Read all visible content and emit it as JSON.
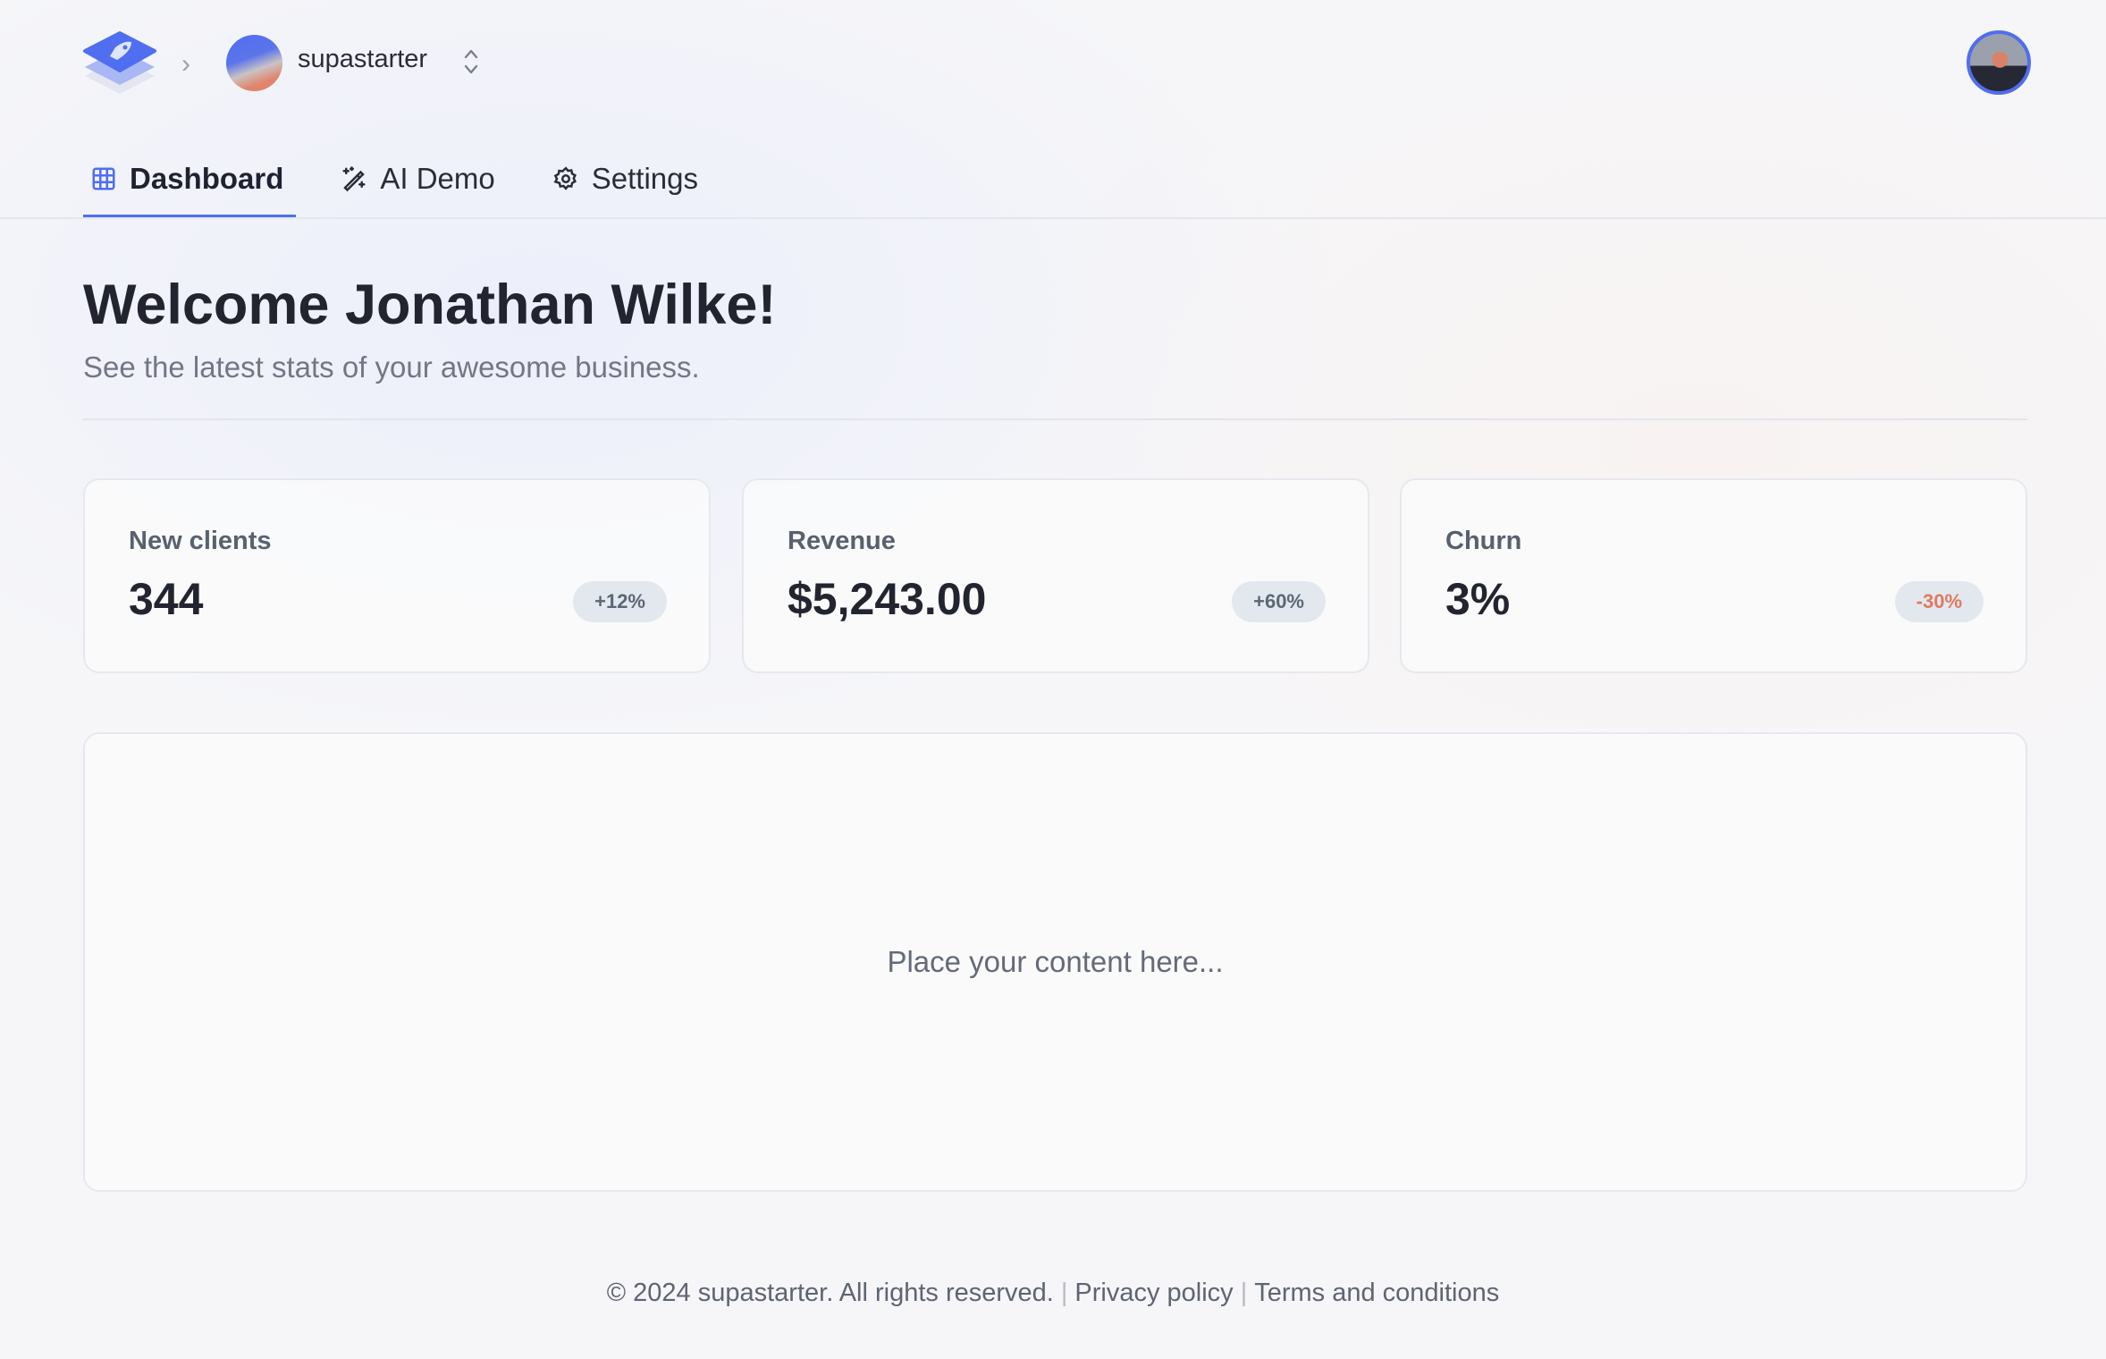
{
  "header": {
    "org_name": "supastarter",
    "colors": {
      "accent": "#4f6ef0"
    },
    "icons": [
      "logo-rocket-icon",
      "chevron-right-icon",
      "chevron-up-down-icon",
      "user-avatar"
    ]
  },
  "tabs": [
    {
      "label": "Dashboard",
      "icon": "grid-icon",
      "active": true
    },
    {
      "label": "AI Demo",
      "icon": "magic-wand-icon",
      "active": false
    },
    {
      "label": "Settings",
      "icon": "gear-icon",
      "active": false
    }
  ],
  "main": {
    "title": "Welcome Jonathan Wilke!",
    "subtitle": "See the latest stats of your awesome business.",
    "stats": [
      {
        "label": "New clients",
        "value": "344",
        "change": "+12%"
      },
      {
        "label": "Revenue",
        "value": "$5,243.00",
        "change": "+60%"
      },
      {
        "label": "Churn",
        "value": "3%",
        "change": "-30%"
      }
    ],
    "placeholder": "Place your content here..."
  },
  "footer": {
    "copyright": "© 2024 supastarter. All rights reserved.",
    "separator": "|",
    "privacy": "Privacy policy",
    "terms": "Terms and conditions"
  }
}
